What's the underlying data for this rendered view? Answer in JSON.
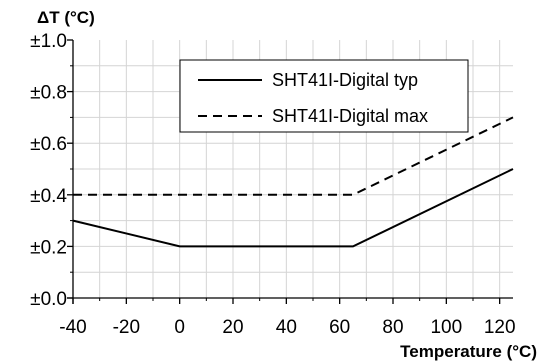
{
  "chart_data": {
    "type": "line",
    "ylabel": "ΔT (°C)",
    "xlabel": "Temperature (°C)",
    "xlim": [
      -40,
      125
    ],
    "ylim": [
      0,
      1.0
    ],
    "x_ticks": [
      -40,
      -20,
      0,
      20,
      40,
      60,
      80,
      100,
      120
    ],
    "y_ticks": [
      {
        "value": 0.0,
        "label": "±0.0"
      },
      {
        "value": 0.2,
        "label": "±0.2"
      },
      {
        "value": 0.4,
        "label": "±0.4"
      },
      {
        "value": 0.6,
        "label": "±0.6"
      },
      {
        "value": 0.8,
        "label": "±0.8"
      },
      {
        "value": 1.0,
        "label": "±1.0"
      }
    ],
    "grid": true,
    "legend_position": "top-right",
    "series": [
      {
        "name": "SHT41I-Digital typ",
        "style": "solid",
        "color": "#000000",
        "x": [
          -40,
          0,
          65,
          125
        ],
        "y": [
          0.3,
          0.2,
          0.2,
          0.5
        ]
      },
      {
        "name": "SHT41I-Digital max",
        "style": "dashed",
        "color": "#000000",
        "x": [
          -40,
          65,
          125
        ],
        "y": [
          0.4,
          0.4,
          0.7
        ]
      }
    ]
  }
}
